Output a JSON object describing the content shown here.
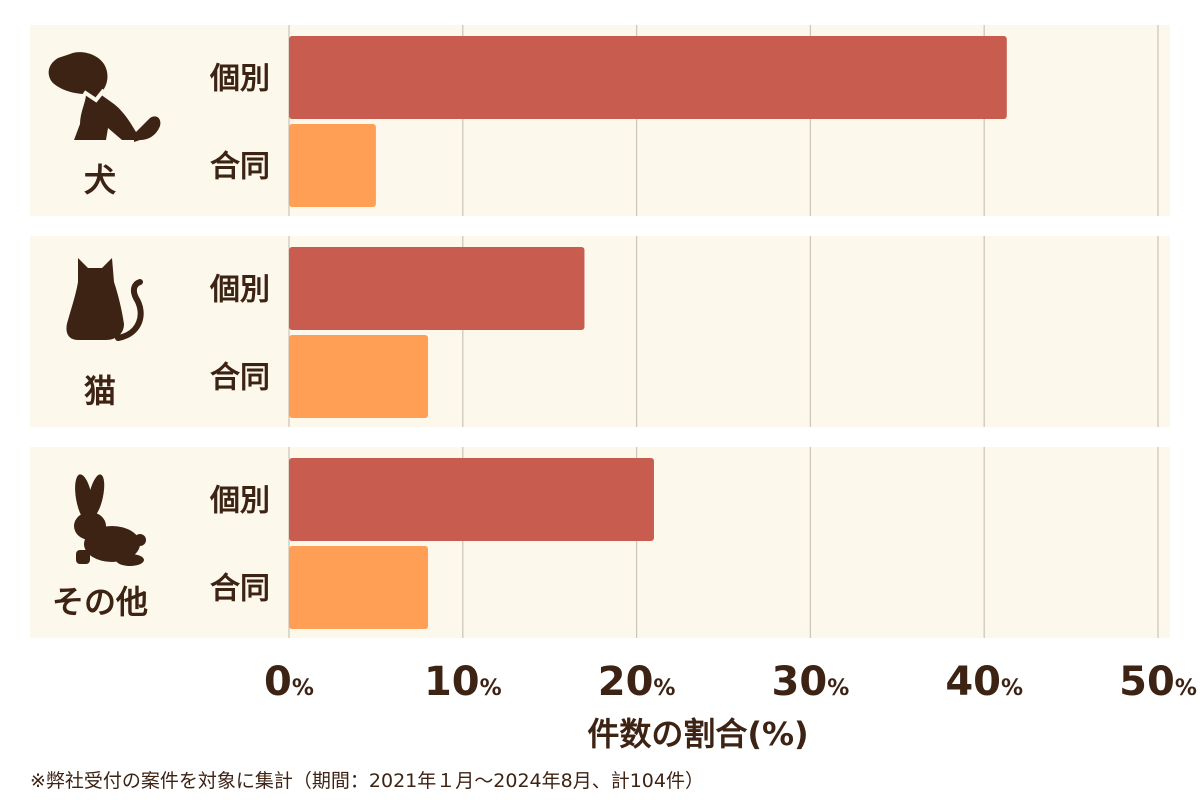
{
  "chart_data": {
    "type": "bar",
    "orientation": "horizontal",
    "groups": [
      {
        "label": "犬",
        "icon": "dog-icon"
      },
      {
        "label": "猫",
        "icon": "cat-icon"
      },
      {
        "label": "その他",
        "icon": "rabbit-icon"
      }
    ],
    "series": [
      {
        "name": "個別",
        "color": "#c85c4e",
        "values": [
          41.3,
          17.0,
          21.0
        ]
      },
      {
        "name": "合同",
        "color": "#ff9f55",
        "values": [
          5.0,
          8.0,
          8.0
        ]
      }
    ],
    "xlim": [
      0,
      50
    ],
    "ticks": [
      {
        "value": 0,
        "num": "0",
        "unit": "%"
      },
      {
        "value": 10,
        "num": "10",
        "unit": "%"
      },
      {
        "value": 20,
        "num": "20",
        "unit": "%"
      },
      {
        "value": 30,
        "num": "30",
        "unit": "%"
      },
      {
        "value": 40,
        "num": "40",
        "unit": "%"
      },
      {
        "value": 50,
        "num": "50",
        "unit": "%"
      }
    ],
    "xlabel": "件数の割合(%)",
    "grid": true,
    "colors": {
      "panel": "#fdf8ec",
      "gridline": "#cfc8bb",
      "text": "#3d2314"
    }
  },
  "footnote": "※弊社受付の案件を対象に集計（期間：2021年１月～2024年8月、計104件）"
}
